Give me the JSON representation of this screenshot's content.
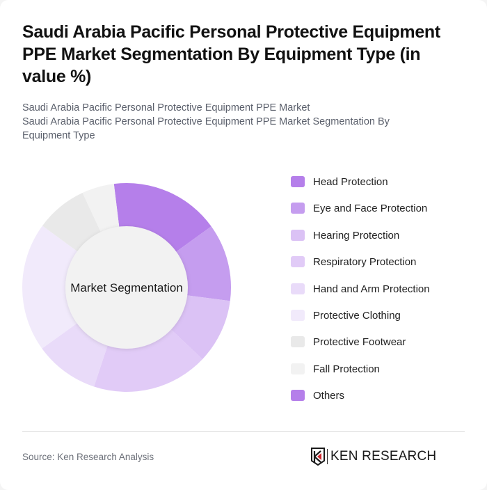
{
  "header": {
    "title": "Saudi Arabia Pacific Personal Protective Equipment PPE Market Segmentation By Equipment Type (in value %)",
    "subtitle_line1": "Saudi Arabia Pacific Personal Protective Equipment PPE Market",
    "subtitle_line2": "Saudi Arabia Pacific Personal Protective Equipment PPE Market Segmentation By Equipment Type"
  },
  "chart": {
    "center_label": "Market Segmentation"
  },
  "legend": {
    "items": [
      {
        "label": "Head Protection",
        "color": "#b57fea"
      },
      {
        "label": "Eye and Face Protection",
        "color": "#c59def"
      },
      {
        "label": "Hearing Protection",
        "color": "#dbc2f5"
      },
      {
        "label": "Respiratory Protection",
        "color": "#e1cbf7"
      },
      {
        "label": "Hand and Arm Protection",
        "color": "#e9dbf9"
      },
      {
        "label": "Protective Clothing",
        "color": "#f1eafb"
      },
      {
        "label": "Protective Footwear",
        "color": "#e9e9e9"
      },
      {
        "label": "Fall Protection",
        "color": "#f2f2f2"
      },
      {
        "label": "Others",
        "color": "#b57fea"
      }
    ]
  },
  "footer": {
    "source": "Source: Ken Research Analysis",
    "logo_text": "KEN RESEARCH"
  },
  "chart_data": {
    "type": "pie",
    "title": "Saudi Arabia Pacific Personal Protective Equipment PPE Market Segmentation By Equipment Type (in value %)",
    "subtitle": "Market Segmentation",
    "categories": [
      "Head Protection",
      "Eye and Face Protection",
      "Hearing Protection",
      "Respiratory Protection",
      "Hand and Arm Protection",
      "Protective Clothing",
      "Protective Footwear",
      "Fall Protection",
      "Others"
    ],
    "values": [
      17,
      12,
      10,
      18,
      10,
      20,
      8,
      5,
      0
    ],
    "unit": "%",
    "donut": true,
    "legend_position": "right",
    "start_angle_deg": -7
  }
}
